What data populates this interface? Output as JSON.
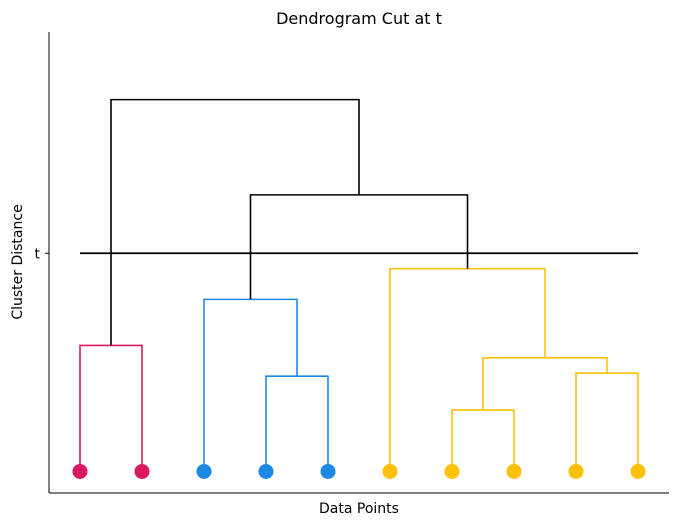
{
  "chart_data": {
    "type": "dendrogram",
    "title": "Dendrogram Cut at t",
    "xlabel": "Data Points",
    "ylabel": "Cluster Distance",
    "y_ticks": [
      {
        "label": "t",
        "value": 7.1
      }
    ],
    "ylim": [
      -0.7,
      14.3
    ],
    "x_tick_labels_shown": false,
    "y_numeric_tick_labels_shown": false,
    "grid": false,
    "legend": "none",
    "cut_height": 7.1,
    "cluster_colors": {
      "A": "#d81b60",
      "B": "#1e88e5",
      "C": "#ffc107",
      "above_cut": "#000000"
    },
    "leaves": [
      {
        "cluster": "A"
      },
      {
        "cluster": "A"
      },
      {
        "cluster": "B"
      },
      {
        "cluster": "B"
      },
      {
        "cluster": "B"
      },
      {
        "cluster": "C"
      },
      {
        "cluster": "C"
      },
      {
        "cluster": "C"
      },
      {
        "cluster": "C"
      },
      {
        "cluster": "C"
      }
    ],
    "merges": [
      {
        "left": "L0",
        "right": "L1",
        "height": 4.1,
        "color": "A"
      },
      {
        "left": "L3",
        "right": "L4",
        "height": 3.1,
        "color": "B"
      },
      {
        "left": "L2",
        "right": "M1",
        "height": 5.6,
        "color": "B"
      },
      {
        "left": "L6",
        "right": "L7",
        "height": 2.0,
        "color": "C"
      },
      {
        "left": "L8",
        "right": "L9",
        "height": 3.2,
        "color": "C"
      },
      {
        "left": "M3",
        "right": "M4",
        "height": 3.7,
        "color": "C"
      },
      {
        "left": "L5",
        "right": "M5",
        "height": 6.6,
        "color": "C"
      },
      {
        "left": "M2",
        "right": "M6",
        "height": 9.0,
        "color": "above_cut"
      },
      {
        "left": "M0",
        "right": "M7",
        "height": 12.1,
        "color": "above_cut"
      }
    ]
  }
}
